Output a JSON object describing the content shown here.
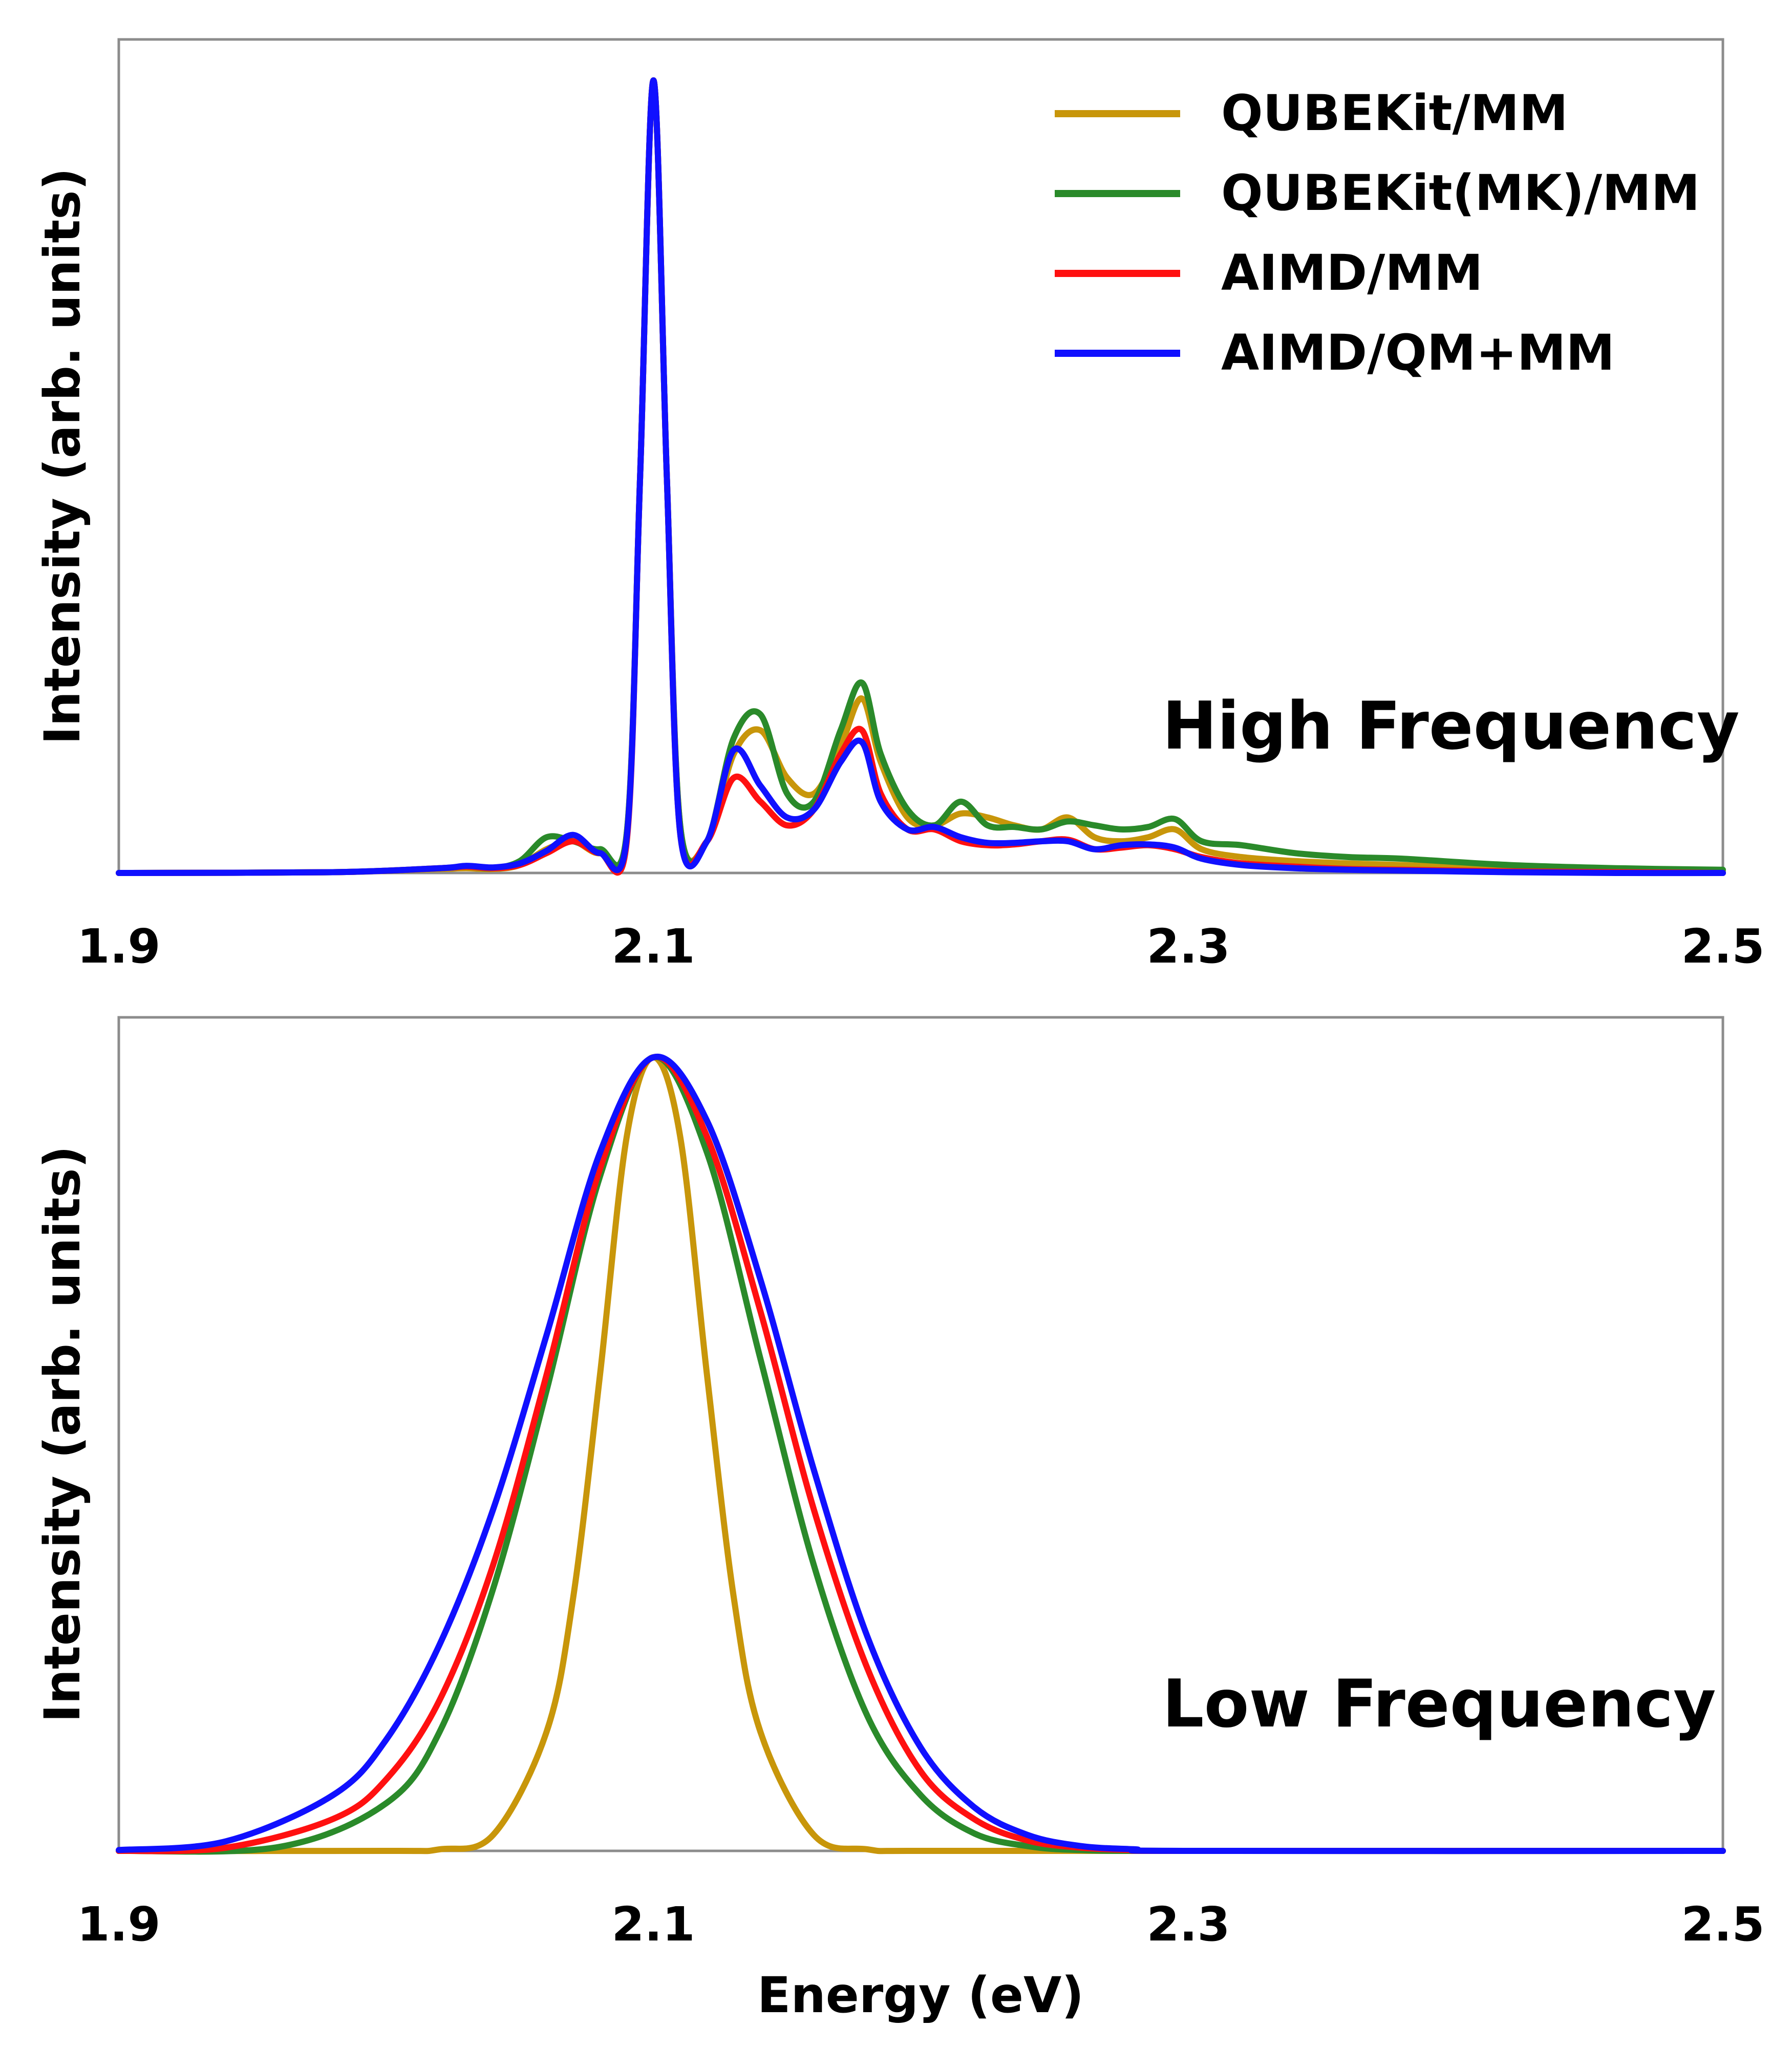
{
  "colors": {
    "qubekit_mm": "#C8960A",
    "qubekit_mk_mm": "#2A8A2A",
    "aimd_mm": "#FF1010",
    "aimd_qm_mm": "#1010FF",
    "axis": "#8C8C8C"
  },
  "chart_data": [
    {
      "type": "line",
      "title": "",
      "annotation": "High Frequency",
      "xlabel": "",
      "ylabel": "Intensity (arb. units)",
      "xlim": [
        1.9,
        2.5
      ],
      "ylim": [
        0,
        1.0
      ],
      "xticks": [
        "1.9",
        "2.1",
        "2.3",
        "2.5"
      ],
      "grid": false,
      "legend": {
        "position": "top-right",
        "entries": [
          "QUBEKit/MM",
          "QUBEKit(MK)/MM",
          "AIMD/MM",
          "AIMD/QM+MM"
        ]
      },
      "series": [
        {
          "name": "QUBEKit/MM",
          "color_key": "qubekit_mm",
          "x": [
            1.9,
            1.98,
            2.02,
            2.03,
            2.04,
            2.05,
            2.06,
            2.07,
            2.08,
            2.09,
            2.095,
            2.1,
            2.105,
            2.11,
            2.12,
            2.13,
            2.14,
            2.15,
            2.16,
            2.17,
            2.178,
            2.185,
            2.195,
            2.205,
            2.215,
            2.225,
            2.235,
            2.245,
            2.255,
            2.265,
            2.275,
            2.285,
            2.295,
            2.305,
            2.32,
            2.34,
            2.36,
            2.38,
            2.42,
            2.46,
            2.5
          ],
          "y": [
            0.0,
            0.001,
            0.005,
            0.006,
            0.005,
            0.01,
            0.03,
            0.04,
            0.025,
            0.05,
            0.5,
            1.0,
            0.5,
            0.06,
            0.04,
            0.15,
            0.18,
            0.12,
            0.1,
            0.16,
            0.22,
            0.14,
            0.07,
            0.06,
            0.075,
            0.07,
            0.06,
            0.055,
            0.07,
            0.045,
            0.04,
            0.045,
            0.055,
            0.03,
            0.02,
            0.015,
            0.012,
            0.01,
            0.005,
            0.002,
            0.001
          ]
        },
        {
          "name": "QUBEKit(MK)/MM",
          "color_key": "qubekit_mk_mm",
          "x": [
            1.9,
            1.98,
            2.02,
            2.03,
            2.04,
            2.05,
            2.06,
            2.07,
            2.08,
            2.09,
            2.095,
            2.1,
            2.105,
            2.11,
            2.12,
            2.13,
            2.14,
            2.15,
            2.16,
            2.17,
            2.178,
            2.185,
            2.195,
            2.205,
            2.215,
            2.225,
            2.235,
            2.245,
            2.255,
            2.265,
            2.275,
            2.285,
            2.295,
            2.305,
            2.32,
            2.34,
            2.36,
            2.38,
            2.42,
            2.46,
            2.5
          ],
          "y": [
            0.0,
            0.001,
            0.006,
            0.008,
            0.006,
            0.015,
            0.045,
            0.04,
            0.03,
            0.05,
            0.5,
            1.0,
            0.5,
            0.06,
            0.04,
            0.17,
            0.2,
            0.1,
            0.09,
            0.18,
            0.24,
            0.15,
            0.08,
            0.06,
            0.09,
            0.06,
            0.058,
            0.055,
            0.065,
            0.06,
            0.055,
            0.058,
            0.068,
            0.04,
            0.035,
            0.025,
            0.02,
            0.018,
            0.01,
            0.006,
            0.004
          ]
        },
        {
          "name": "AIMD/MM",
          "color_key": "aimd_mm",
          "x": [
            1.9,
            1.98,
            2.02,
            2.03,
            2.04,
            2.05,
            2.06,
            2.07,
            2.08,
            2.09,
            2.095,
            2.1,
            2.105,
            2.11,
            2.12,
            2.13,
            2.14,
            2.15,
            2.16,
            2.17,
            2.178,
            2.185,
            2.195,
            2.205,
            2.215,
            2.225,
            2.235,
            2.245,
            2.255,
            2.265,
            2.275,
            2.285,
            2.295,
            2.305,
            2.32,
            2.34,
            2.36,
            2.38,
            2.42,
            2.46,
            2.5
          ],
          "y": [
            0.0,
            0.001,
            0.006,
            0.008,
            0.006,
            0.01,
            0.025,
            0.04,
            0.025,
            0.04,
            0.5,
            1.0,
            0.5,
            0.05,
            0.04,
            0.12,
            0.09,
            0.06,
            0.08,
            0.15,
            0.18,
            0.1,
            0.055,
            0.055,
            0.04,
            0.035,
            0.036,
            0.04,
            0.042,
            0.03,
            0.032,
            0.035,
            0.03,
            0.02,
            0.012,
            0.008,
            0.005,
            0.004,
            0.002,
            0.001,
            0.0
          ]
        },
        {
          "name": "AIMD/QM+MM",
          "color_key": "aimd_qm_mm",
          "x": [
            1.9,
            1.98,
            2.02,
            2.03,
            2.04,
            2.05,
            2.06,
            2.07,
            2.08,
            2.09,
            2.095,
            2.1,
            2.105,
            2.11,
            2.12,
            2.13,
            2.14,
            2.15,
            2.16,
            2.17,
            2.178,
            2.185,
            2.195,
            2.205,
            2.215,
            2.225,
            2.235,
            2.245,
            2.255,
            2.265,
            2.275,
            2.285,
            2.295,
            2.305,
            2.32,
            2.34,
            2.36,
            2.38,
            2.42,
            2.46,
            2.5
          ],
          "y": [
            0.0,
            0.001,
            0.006,
            0.009,
            0.007,
            0.012,
            0.028,
            0.048,
            0.025,
            0.045,
            0.5,
            1.0,
            0.5,
            0.05,
            0.04,
            0.155,
            0.11,
            0.07,
            0.08,
            0.14,
            0.165,
            0.09,
            0.055,
            0.058,
            0.045,
            0.038,
            0.038,
            0.04,
            0.04,
            0.03,
            0.035,
            0.036,
            0.032,
            0.018,
            0.01,
            0.006,
            0.004,
            0.003,
            0.001,
            0.0,
            0.0
          ]
        }
      ]
    },
    {
      "type": "line",
      "title": "",
      "annotation": "Low Frequency",
      "xlabel": "Energy (eV)",
      "ylabel": "Intensity (arb. units)",
      "xlim": [
        1.9,
        2.5
      ],
      "ylim": [
        0,
        1.0
      ],
      "xticks": [
        "1.9",
        "2.1",
        "2.3",
        "2.5"
      ],
      "grid": false,
      "series": [
        {
          "name": "QUBEKit/MM",
          "color_key": "qubekit_mm",
          "x": [
            1.9,
            2.0,
            2.02,
            2.04,
            2.06,
            2.07,
            2.08,
            2.09,
            2.1,
            2.11,
            2.12,
            2.13,
            2.14,
            2.16,
            2.18,
            2.2,
            2.3,
            2.5
          ],
          "y": [
            0.0,
            0.0,
            0.002,
            0.02,
            0.15,
            0.32,
            0.6,
            0.9,
            1.0,
            0.9,
            0.6,
            0.32,
            0.15,
            0.02,
            0.002,
            0.0,
            0.0,
            0.0
          ]
        },
        {
          "name": "QUBEKit(MK)/MM",
          "color_key": "qubekit_mk_mm",
          "x": [
            1.9,
            1.96,
            2.0,
            2.02,
            2.04,
            2.06,
            2.08,
            2.1,
            2.12,
            2.14,
            2.16,
            2.18,
            2.2,
            2.22,
            2.24,
            2.26,
            2.3,
            2.5
          ],
          "y": [
            0.0,
            0.005,
            0.06,
            0.15,
            0.33,
            0.58,
            0.85,
            1.0,
            0.88,
            0.62,
            0.36,
            0.17,
            0.07,
            0.022,
            0.006,
            0.001,
            0.0,
            0.0
          ]
        },
        {
          "name": "AIMD/MM",
          "color_key": "aimd_mm",
          "x": [
            1.9,
            1.94,
            1.98,
            2.0,
            2.02,
            2.04,
            2.06,
            2.08,
            2.1,
            2.12,
            2.14,
            2.16,
            2.18,
            2.2,
            2.22,
            2.24,
            2.26,
            2.28,
            2.3,
            2.5
          ],
          "y": [
            0.0,
            0.004,
            0.04,
            0.09,
            0.19,
            0.36,
            0.6,
            0.86,
            1.0,
            0.9,
            0.68,
            0.43,
            0.23,
            0.1,
            0.04,
            0.013,
            0.004,
            0.001,
            0.0,
            0.0
          ]
        },
        {
          "name": "AIMD/QM+MM",
          "color_key": "aimd_qm_mm",
          "x": [
            1.9,
            1.94,
            1.98,
            2.0,
            2.02,
            2.04,
            2.06,
            2.08,
            2.1,
            2.12,
            2.14,
            2.16,
            2.18,
            2.2,
            2.22,
            2.24,
            2.26,
            2.28,
            2.3,
            2.5
          ],
          "y": [
            0.001,
            0.012,
            0.07,
            0.14,
            0.26,
            0.43,
            0.65,
            0.88,
            1.0,
            0.92,
            0.72,
            0.48,
            0.27,
            0.13,
            0.055,
            0.02,
            0.006,
            0.002,
            0.0,
            0.0
          ]
        }
      ]
    }
  ]
}
